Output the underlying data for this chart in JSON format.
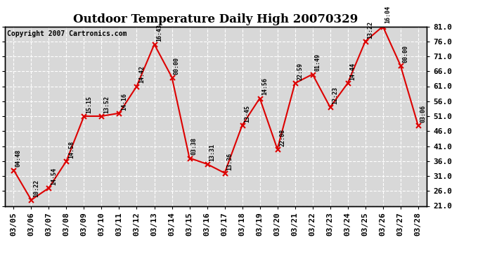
{
  "title": "Outdoor Temperature Daily High 20070329",
  "copyright": "Copyright 2007 Cartronics.com",
  "dates": [
    "03/05",
    "03/06",
    "03/07",
    "03/08",
    "03/09",
    "03/10",
    "03/11",
    "03/12",
    "03/13",
    "03/14",
    "03/15",
    "03/16",
    "03/17",
    "03/18",
    "03/19",
    "03/20",
    "03/21",
    "03/22",
    "03/23",
    "03/24",
    "03/25",
    "03/26",
    "03/27",
    "03/28"
  ],
  "values": [
    33.0,
    23.0,
    27.0,
    36.0,
    51.0,
    51.0,
    52.0,
    61.0,
    75.0,
    64.0,
    37.0,
    35.0,
    32.0,
    48.0,
    57.0,
    40.0,
    62.0,
    65.0,
    54.0,
    62.0,
    76.0,
    81.0,
    68.0,
    48.0
  ],
  "annotations": [
    "04:48",
    "10:22",
    "14:54",
    "14:58",
    "15:15",
    "13:52",
    "14:16",
    "14:42",
    "16:43",
    "00:00",
    "03:38",
    "13:31",
    "13:36",
    "13:45",
    "14:56",
    "22:08",
    "22:59",
    "01:49",
    "12:23",
    "14:44",
    "13:22",
    "16:04",
    "00:00",
    "03:06"
  ],
  "line_color": "#dd0000",
  "marker_color": "#dd0000",
  "bg_color": "#ffffff",
  "plot_bg_color": "#d8d8d8",
  "grid_color": "#ffffff",
  "ylim": [
    21.0,
    81.0
  ],
  "yticks": [
    21.0,
    26.0,
    31.0,
    36.0,
    41.0,
    46.0,
    51.0,
    56.0,
    61.0,
    66.0,
    71.0,
    76.0,
    81.0
  ],
  "title_fontsize": 12,
  "tick_fontsize": 8,
  "ann_fontsize": 6,
  "copyright_fontsize": 7
}
